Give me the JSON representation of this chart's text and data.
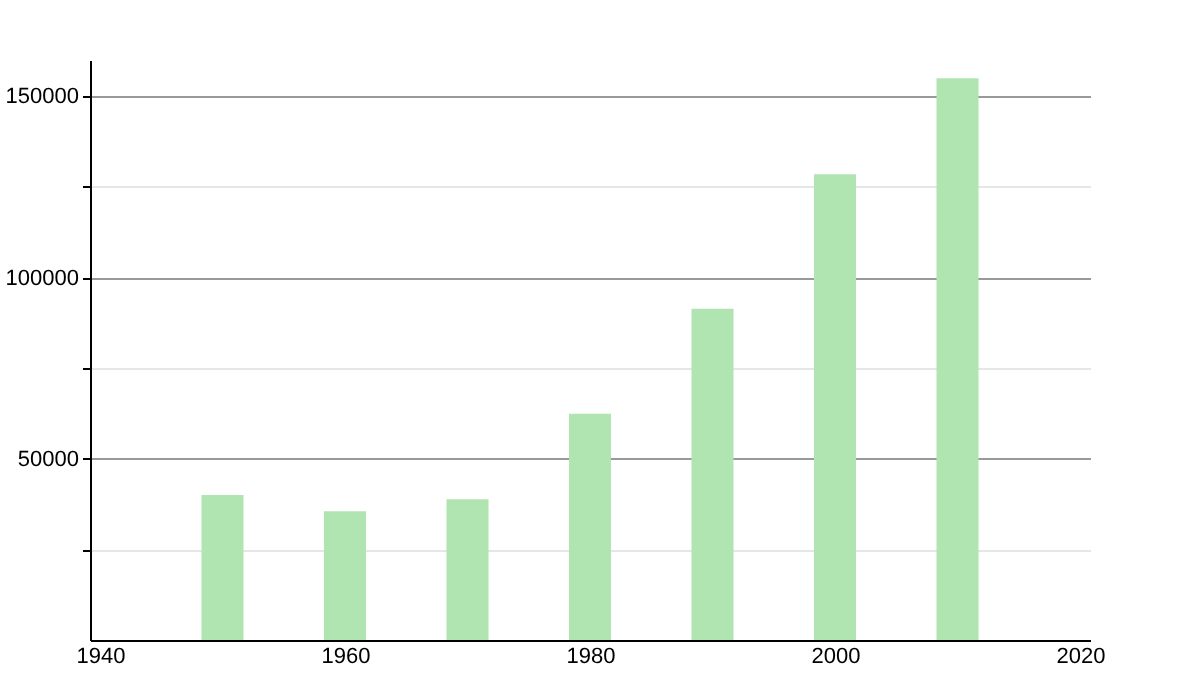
{
  "chart_data": {
    "type": "bar",
    "x": [
      1950,
      1960,
      1970,
      1980,
      1990,
      2000,
      2010
    ],
    "values": [
      40000,
      35500,
      38800,
      62400,
      91400,
      128500,
      155000
    ],
    "color": "#b0e4b0",
    "xlim": [
      1940,
      2020
    ],
    "xticks": [
      1940,
      1960,
      1980,
      2000,
      2020
    ],
    "ylim": [
      0,
      160000
    ],
    "yticks": [
      {
        "value": 25000,
        "label": null
      },
      50000,
      {
        "value": 75000,
        "label": null
      },
      100000,
      {
        "value": 125000,
        "label": null
      },
      150000
    ],
    "grid": "y"
  }
}
